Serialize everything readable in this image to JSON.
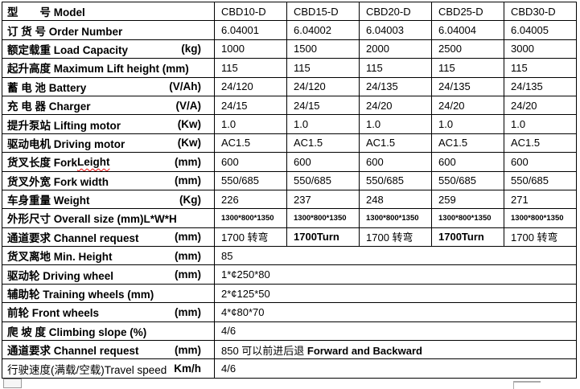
{
  "table": {
    "rows": [
      {
        "label": "型　　号 Model",
        "unit": "",
        "values": [
          "CBD10-D",
          "CBD15-D",
          "CBD20-D",
          "CBD25-D",
          "CBD30-D"
        ]
      },
      {
        "label": "订 货 号 Order Number",
        "unit": "",
        "values": [
          "6.04001",
          "6.04002",
          "6.04003",
          "6.04004",
          "6.04005"
        ]
      },
      {
        "label": "额定载重 Load Capacity",
        "unit": "(kg)",
        "values": [
          "1000",
          "1500",
          "2000",
          "2500",
          "3000"
        ]
      },
      {
        "label": "起升高度 Maximum Lift height (mm)",
        "unit": "",
        "values": [
          "115",
          "115",
          "115",
          "115",
          "115"
        ]
      },
      {
        "label": "蓄 电 池 Battery",
        "unit": "(V/Ah)",
        "values": [
          "24/120",
          "24/120",
          "24/135",
          "24/135",
          "24/135"
        ]
      },
      {
        "label": "充 电 器 Charger",
        "unit": "(V/A)",
        "values": [
          "24/15",
          "24/15",
          "24/20",
          "24/20",
          "24/20"
        ]
      },
      {
        "label": "提升泵站 Lifting motor",
        "unit": "(Kw)",
        "values": [
          "1.0",
          "1.0",
          "1.0",
          "1.0",
          "1.0"
        ]
      },
      {
        "label": "驱动电机 Driving motor",
        "unit": "(Kw)",
        "values": [
          "AC1.5",
          "AC1.5",
          "AC1.5",
          "AC1.5",
          "AC1.5"
        ]
      },
      {
        "label": "货叉长度 Fork ",
        "label_err": "Leight",
        "unit": "(mm)",
        "values": [
          "600",
          "600",
          "600",
          "600",
          "600"
        ]
      },
      {
        "label": "货叉外宽 Fork width",
        "unit": "(mm)",
        "values": [
          "550/685",
          "550/685",
          "550/685",
          "550/685",
          "550/685"
        ]
      },
      {
        "label": "车身重量 Weight",
        "unit": "(Kg)",
        "values": [
          "226",
          "237",
          "248",
          "259",
          "271"
        ]
      },
      {
        "label": "外形尺寸 Overall size (mm)L*W*H",
        "unit": "",
        "small": true,
        "values": [
          "1300*800*1350",
          "1300*800*1350",
          "1300*800*1350",
          "1300*800*1350",
          "1300*800*1350"
        ]
      },
      {
        "label": "通道要求 Channel request",
        "unit": "(mm)",
        "value_bold_mask": [
          0,
          1,
          0,
          1,
          0
        ],
        "values": [
          "1700 转弯",
          "1700Turn",
          "1700 转弯",
          "1700Turn",
          "1700 转弯"
        ]
      },
      {
        "label": "货叉离地 Min. Height",
        "unit": "(mm)",
        "merged": true,
        "value": "85"
      },
      {
        "label": "驱动轮 Driving wheel",
        "unit": "(mm)",
        "merged": true,
        "value": "1*¢250*80"
      },
      {
        "label": "辅助轮 Training wheels (mm)",
        "unit": "",
        "merged": true,
        "value": "2*¢125*50"
      },
      {
        "label": "前轮 Front wheels",
        "unit": "(mm)",
        "merged": true,
        "value": "4*¢80*70"
      },
      {
        "label": "爬 坡 度 Climbing slope (%)",
        "unit": "",
        "merged": true,
        "value": "4/6"
      },
      {
        "label": "通道要求 Channel request",
        "unit": "(mm)",
        "merged": true,
        "value": "850 可以前进后退 ",
        "value_bold_tail": "Forward and Backward"
      },
      {
        "label": "行驶速度(满载/空载)Travel speed",
        "unit": "Km/h",
        "label_regular": true,
        "merged": true,
        "value": "4/6"
      }
    ]
  },
  "colors": {
    "border": "#000000",
    "squiggle": "#ee1111",
    "handle_gray": "#9a9a9a"
  },
  "artifacts": {
    "left_handle": "table-handle-fragment",
    "right_handle": "table-handle-fragment"
  }
}
